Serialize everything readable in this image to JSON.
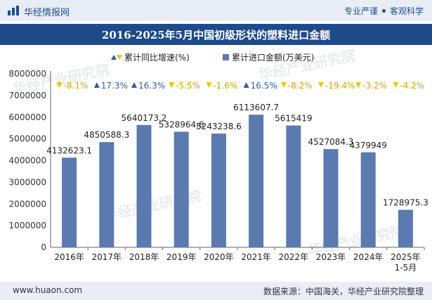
{
  "header": {
    "brand": "华经情报网",
    "slogan_left": "专业严谨",
    "slogan_right": "客观科学"
  },
  "title_text": "2016-2025年5月中国初级形状的塑料进口金额",
  "footer": {
    "site": "www.huaon.com",
    "source": "数据来源：中国海关，华经产业研究院整理"
  },
  "watermark_text": "华经产业研究院",
  "colors": {
    "bar": "#5a7ab0",
    "up": "#2f5ea8",
    "down": "#f2c200",
    "title_bg": "#1f4a8a",
    "band_bg": "#e9eef6"
  },
  "chart_data": {
    "type": "bar",
    "categories": [
      "2016年",
      "2017年",
      "2018年",
      "2019年",
      "2020年",
      "2021年",
      "2022年",
      "2023年",
      "2024年",
      "2025年\n1-5月"
    ],
    "series": [
      {
        "name": "累计进口金额(万美元)",
        "values": [
          4132623.1,
          4850588.3,
          5640173.2,
          5328964.6,
          5243238.6,
          6113607.7,
          5615419,
          4527084.3,
          4379949,
          1728975.3
        ],
        "labels": [
          "4132623.1",
          "4850588.3",
          "5640173.2",
          "5328964.6",
          "5243238.6",
          "6113607.7",
          "5615419",
          "4527084.3",
          "4379949",
          "1728975.3"
        ]
      },
      {
        "name": "累计同比增速(%)",
        "values": [
          -8.1,
          17.3,
          16.3,
          -5.5,
          -1.6,
          16.5,
          -8.2,
          -19.4,
          -3.2,
          -4.2
        ],
        "labels": [
          "-8.1%",
          "17.3%",
          "16.3%",
          "-5.5%",
          "-1.6%",
          "16.5%",
          "-8.2%",
          "-19.4%",
          "-3.2%",
          "-4.2%"
        ]
      }
    ],
    "yticks": [
      "0",
      "1000000",
      "2000000",
      "3000000",
      "4000000",
      "5000000",
      "6000000",
      "7000000",
      "8000000"
    ],
    "ylim": [
      0,
      8000000
    ],
    "legend": "top-center"
  }
}
